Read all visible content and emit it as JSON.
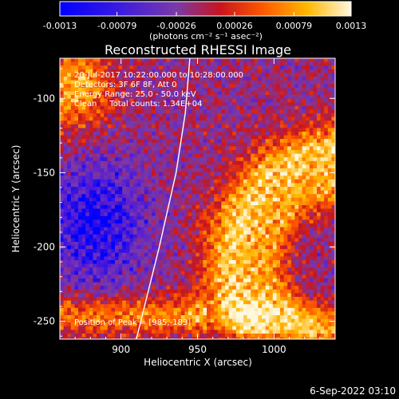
{
  "chart_data": {
    "type": "heatmap",
    "title": "Reconstructed RHESSI Image",
    "xlabel": "Heliocentric X (arcsec)",
    "ylabel": "Heliocentric Y (arcsec)",
    "xlim": [
      860,
      1040
    ],
    "ylim": [
      -262,
      -73
    ],
    "x_ticks": [
      900,
      950,
      1000
    ],
    "y_ticks": [
      -100,
      -150,
      -200,
      -250
    ],
    "colorbar": {
      "vmin": -0.0013,
      "vmax": 0.0013,
      "tick_values": [
        -0.0013,
        -0.00079,
        -0.00026,
        0.00026,
        0.00079,
        0.0013
      ],
      "tick_labels": [
        "-0.0013",
        "-0.00079",
        "-0.00026",
        "0.00026",
        "0.00079",
        "0.0013"
      ],
      "unit_label": "(photons cm⁻² s⁻¹ asec⁻²)",
      "colors": [
        "#0000ff",
        "#5a1fd0",
        "#7a3aa8",
        "#c8141e",
        "#ff5a00",
        "#ffb800",
        "#fff8e0"
      ]
    },
    "annotations": {
      "time": "20-Jul-2017 10:22:00.000 to 10:28:00.000",
      "detectors": "Detectors: 3F 6F 8F, Att 0",
      "energy": "Energy Range: 25.0 - 50.0 keV",
      "method": "Clean     Total counts: 1.34E+04",
      "peak": "Position of Peak = [985,-183]"
    },
    "peak": [
      985,
      -183
    ],
    "limb_curve": [
      [
        910,
        -262
      ],
      [
        925,
        -200
      ],
      [
        936,
        -150
      ],
      [
        942,
        -110
      ],
      [
        945,
        -73
      ]
    ]
  },
  "footer": {
    "date": "6-Sep-2022 03:10"
  }
}
